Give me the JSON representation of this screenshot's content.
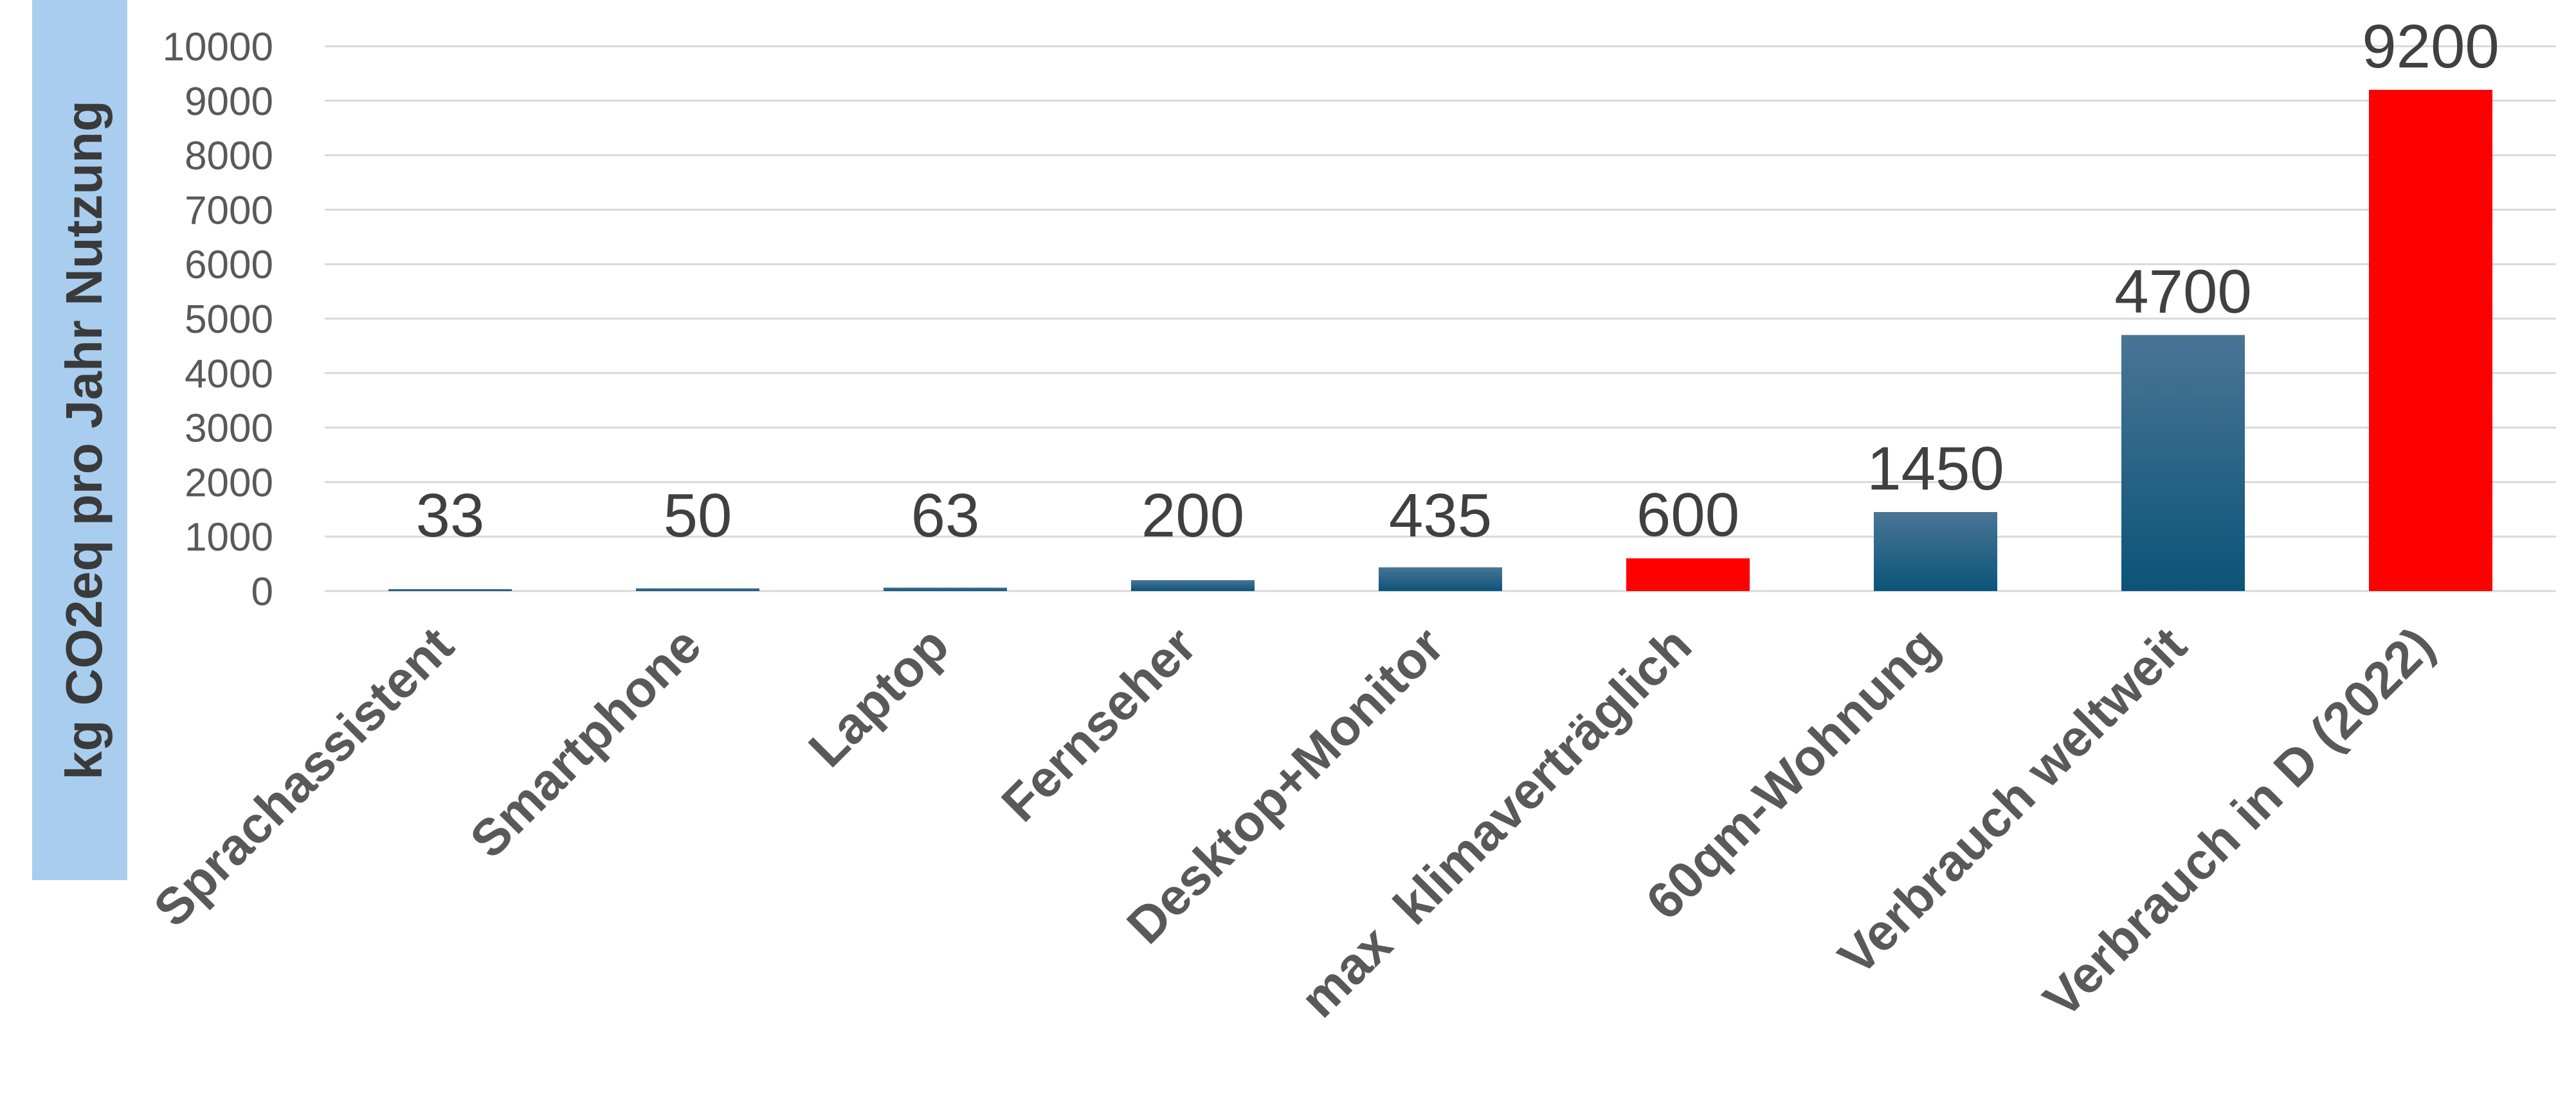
{
  "chart_data": {
    "type": "bar",
    "title": "",
    "xlabel": "",
    "ylabel": "kg CO2eq pro Jahr Nutzung",
    "ylim": [
      0,
      10000
    ],
    "yticks": [
      0,
      1000,
      2000,
      3000,
      4000,
      5000,
      6000,
      7000,
      8000,
      9000,
      10000
    ],
    "grid": true,
    "legend": "none",
    "categories": [
      "Sprachassistent",
      "Smartphone",
      "Laptop",
      "Fernseher",
      "Desktop+Monitor",
      "max  klimaverträglich",
      "60qm-Wohnung",
      "Verbrauch weltweit",
      "Verbrauch in D (2022)"
    ],
    "values": [
      33,
      50,
      63,
      200,
      435,
      600,
      1450,
      4700,
      9200
    ],
    "data_labels": [
      "33",
      "50",
      "63",
      "200",
      "435",
      "600",
      "1450",
      "4700",
      "9200"
    ],
    "bar_colors": [
      "blue",
      "blue",
      "blue",
      "blue",
      "blue",
      "red",
      "blue",
      "blue",
      "red"
    ]
  },
  "colors": {
    "blue_top": "#4a7595",
    "blue_bottom": "#0b5479",
    "red": "#ff0000",
    "ylabel_background": "#a9cdee"
  }
}
